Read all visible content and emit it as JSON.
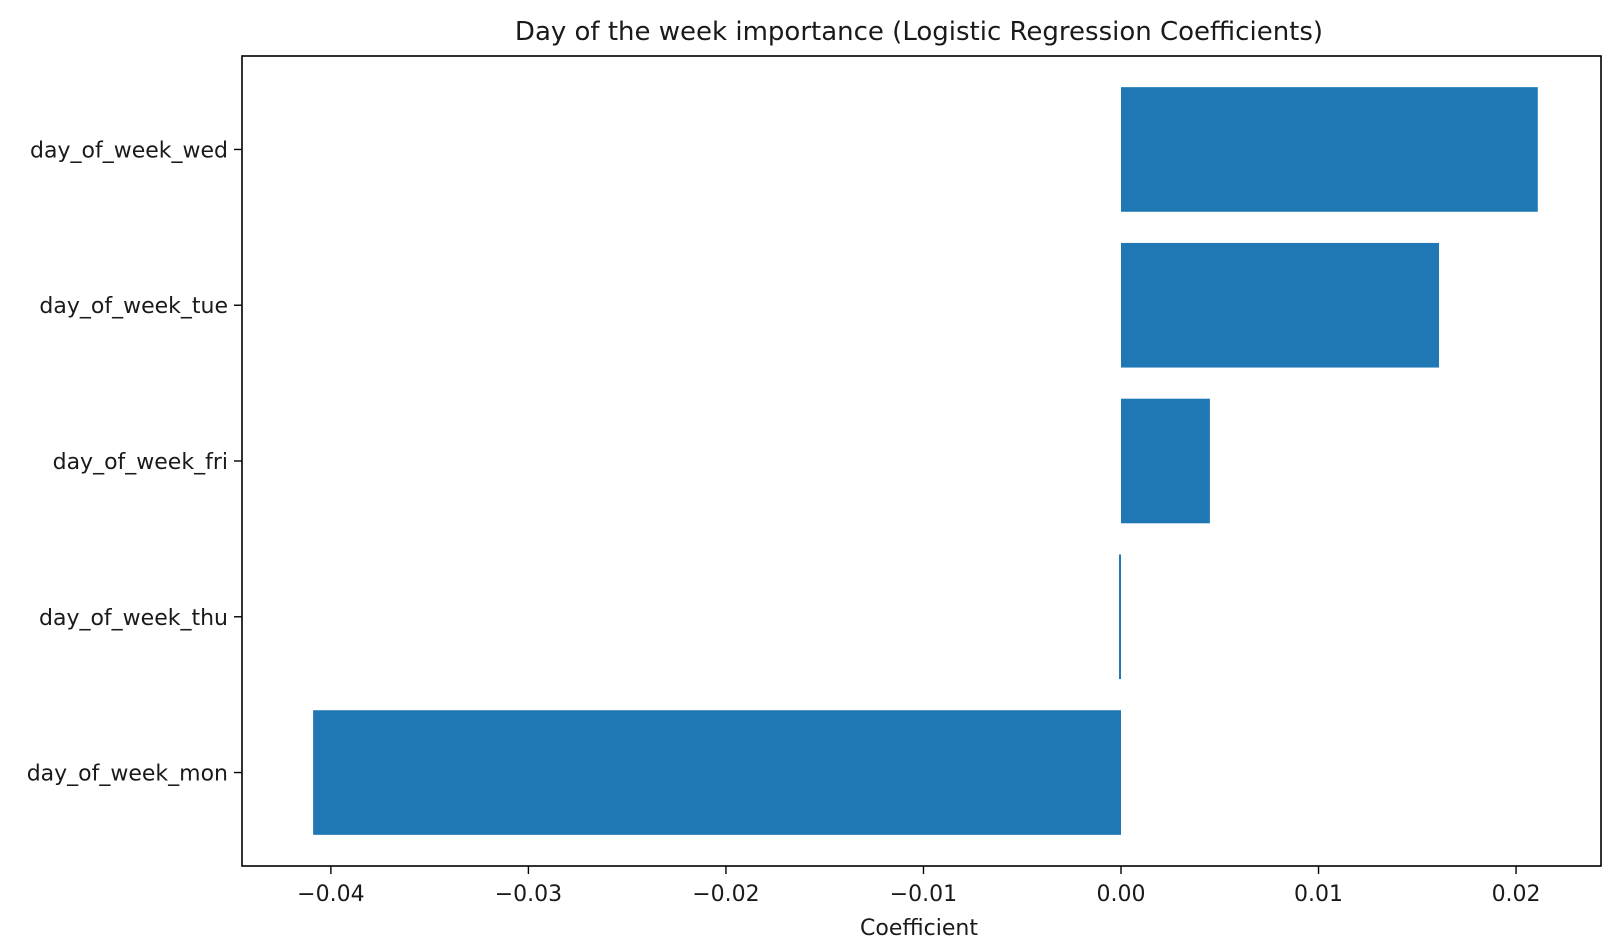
{
  "chart_data": {
    "type": "bar",
    "orientation": "horizontal",
    "title": "Day of the week importance (Logistic Regression Coefficients)",
    "xlabel": "Coefficient",
    "ylabel": "",
    "categories": [
      "day_of_week_wed",
      "day_of_week_tue",
      "day_of_week_fri",
      "day_of_week_thu",
      "day_of_week_mon"
    ],
    "values": [
      0.0211,
      0.0161,
      0.0045,
      -0.0001,
      -0.0409
    ],
    "xlim": [
      -0.0445,
      0.0243
    ],
    "xticks": [
      -0.04,
      -0.03,
      -0.02,
      -0.01,
      0.0,
      0.01,
      0.02
    ],
    "xtick_labels": [
      "−0.04",
      "−0.03",
      "−0.02",
      "−0.01",
      "0.00",
      "0.01",
      "0.02"
    ],
    "bar_color": "#1f77b4",
    "grid": false,
    "legend": false
  }
}
